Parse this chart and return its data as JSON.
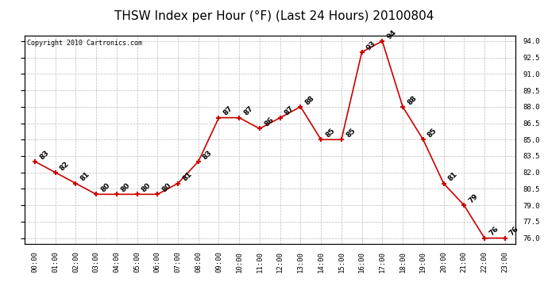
{
  "title": "THSW Index per Hour (°F) (Last 24 Hours) 20100804",
  "copyright": "Copyright 2010 Cartronics.com",
  "hours": [
    "00:00",
    "01:00",
    "02:00",
    "03:00",
    "04:00",
    "05:00",
    "06:00",
    "07:00",
    "08:00",
    "09:00",
    "10:00",
    "11:00",
    "12:00",
    "13:00",
    "14:00",
    "15:00",
    "16:00",
    "17:00",
    "18:00",
    "19:00",
    "20:00",
    "21:00",
    "22:00",
    "23:00"
  ],
  "values": [
    83,
    82,
    81,
    80,
    80,
    80,
    80,
    81,
    83,
    87,
    87,
    86,
    87,
    88,
    85,
    85,
    93,
    94,
    88,
    85,
    81,
    79,
    76,
    76
  ],
  "line_color": "#cc0000",
  "marker_color": "#cc0000",
  "grid_color": "#bbbbbb",
  "bg_color": "#ffffff",
  "ylim_min": 75.5,
  "ylim_max": 94.5,
  "ytick_values": [
    76.0,
    77.5,
    79.0,
    80.5,
    82.0,
    83.5,
    85.0,
    86.5,
    88.0,
    89.5,
    91.0,
    92.5,
    94.0
  ],
  "title_fontsize": 11,
  "label_fontsize": 6.5,
  "annot_fontsize": 6.5,
  "copyright_fontsize": 6
}
